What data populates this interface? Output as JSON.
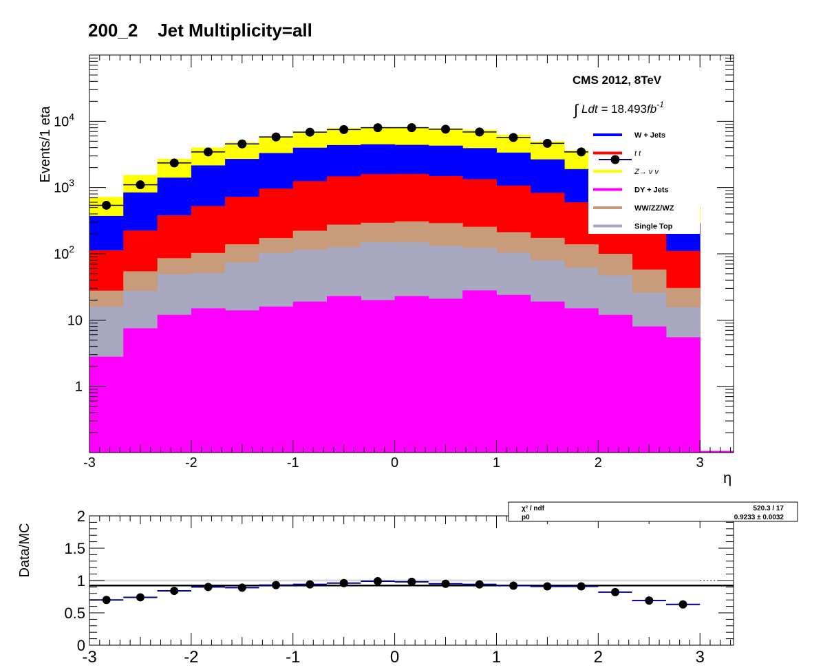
{
  "title": "200_2    Jet Multiplicity=all",
  "cms_label": "CMS 2012, 8TeV",
  "lumi_label": "18.493",
  "lumi_unit": "fb",
  "lumi_exp": "-1",
  "lumi_prefix": "Ldt = ",
  "colors": {
    "wjets": "#0000ff",
    "ttbar": "#ff0000",
    "znunu": "#ffff00",
    "dyjets": "#ff00ff",
    "diboson": "#c89b7b",
    "singletop": "#a8a8c0",
    "data": "#000000",
    "ratio_err": "#00008b"
  },
  "chart_data": [
    {
      "type": "bar",
      "stacked": true,
      "y_scale": "log",
      "xlabel": "η",
      "ylabel": "Events/1 eta",
      "xlim": [
        -3,
        3.33
      ],
      "ylim": [
        0.1,
        100000
      ],
      "x_ticks": [
        "-3",
        "-2",
        "-1",
        "0",
        "1",
        "2",
        "3"
      ],
      "y_ticks": [
        "1",
        "10",
        "10^2",
        "10^3",
        "10^4"
      ],
      "bin_edges": [
        -3,
        -2.667,
        -2.333,
        -2,
        -1.667,
        -1.333,
        -1,
        -0.667,
        -0.333,
        0,
        0.333,
        0.667,
        1,
        1.333,
        1.667,
        2,
        2.333,
        2.667,
        3
      ],
      "legend_position": "top-right",
      "series": [
        {
          "name": "DY + Jets",
          "key": "dyjets",
          "values": [
            2.8,
            7.5,
            12,
            15,
            14,
            16,
            19,
            23,
            20,
            23,
            21,
            28,
            24,
            19,
            15,
            12,
            8,
            5.5
          ]
        },
        {
          "name": "Single Top",
          "key": "singletop",
          "values": [
            13,
            20,
            37,
            36,
            60,
            87,
            96,
            103,
            130,
            126,
            110,
            95,
            80,
            61,
            47,
            35,
            18,
            10
          ]
        },
        {
          "name": "WW/ZZ/WZ",
          "key": "diboson",
          "values": [
            12,
            27,
            37,
            52,
            65,
            70,
            108,
            150,
            145,
            160,
            160,
            133,
            108,
            94,
            77,
            53,
            32,
            15
          ]
        },
        {
          "name": "t  t",
          "key": "ttbar",
          "values": [
            85,
            170,
            295,
            425,
            585,
            790,
            1030,
            1200,
            1300,
            1300,
            1200,
            1080,
            860,
            660,
            460,
            270,
            180,
            80
          ]
        },
        {
          "name": "W + Jets",
          "key": "wjets",
          "values": [
            260,
            620,
            1030,
            1630,
            1980,
            2350,
            2740,
            2900,
            2900,
            2800,
            2800,
            2600,
            2300,
            1830,
            1300,
            780,
            480,
            180
          ]
        },
        {
          "name": "Z→ ν  ν",
          "key": "znunu",
          "values": [
            350,
            700,
            1300,
            1850,
            2100,
            2600,
            3000,
            3500,
            3700,
            3800,
            3600,
            3500,
            2900,
            2300,
            1700,
            1100,
            700,
            230
          ]
        }
      ],
      "data_series": {
        "name": "Data",
        "values": [
          540,
          1100,
          2350,
          3450,
          4550,
          5800,
          6850,
          7500,
          8000,
          8000,
          7600,
          6900,
          5700,
          4650,
          3450,
          2050,
          1050,
          490
        ]
      }
    },
    {
      "type": "scatter",
      "xlabel": "",
      "ylabel": "Data/MC",
      "xlim": [
        -3,
        3.33
      ],
      "ylim": [
        0,
        2
      ],
      "x_ticks": [
        "-3",
        "-2",
        "-1",
        "0",
        "1",
        "2",
        "3"
      ],
      "y_ticks": [
        "0",
        "0.5",
        "1",
        "1.5",
        "2"
      ],
      "x": [
        -2.833,
        -2.5,
        -2.167,
        -1.833,
        -1.5,
        -1.167,
        -0.833,
        -0.5,
        -0.167,
        0.167,
        0.5,
        0.833,
        1.167,
        1.5,
        1.833,
        2.167,
        2.5,
        2.833
      ],
      "values": [
        0.7,
        0.74,
        0.84,
        0.9,
        0.89,
        0.93,
        0.94,
        0.96,
        0.99,
        0.98,
        0.95,
        0.94,
        0.92,
        0.91,
        0.91,
        0.82,
        0.69,
        0.63
      ],
      "fit_value": 0.9233,
      "fit_box": {
        "row1_label": "χ² / ndf",
        "row1_value": "520.3 / 17",
        "row2_label": "p0",
        "row2_value": "0.9233 ± 0.0032"
      }
    }
  ]
}
